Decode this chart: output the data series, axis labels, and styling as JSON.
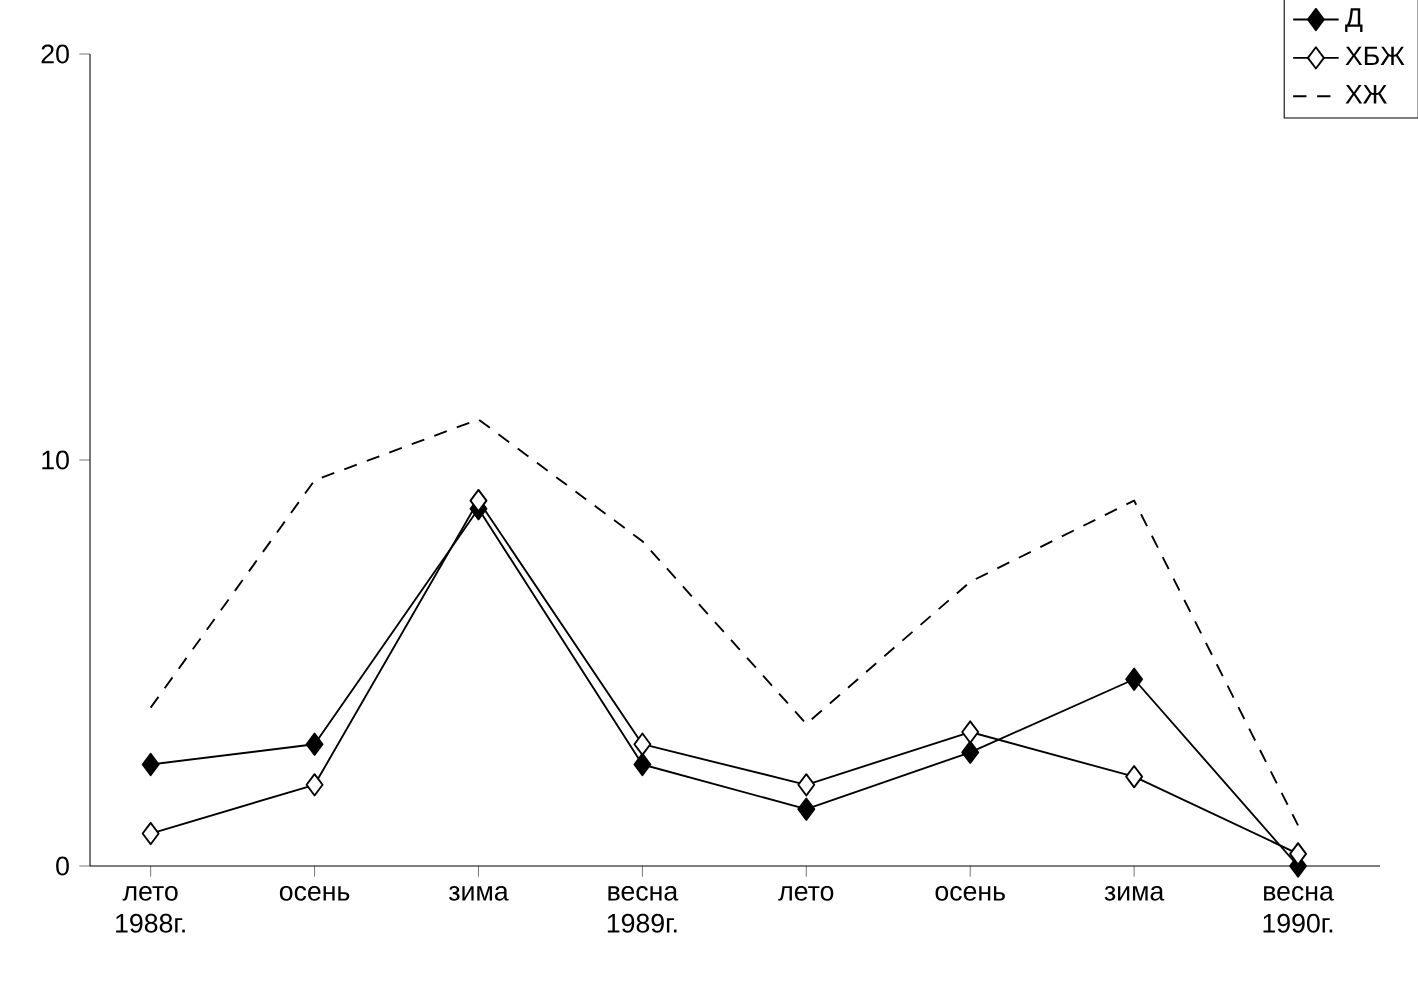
{
  "chart_data": {
    "type": "line",
    "categories": [
      "лето 1988г.",
      "осень",
      "зима",
      "весна 1989г.",
      "лето",
      "осень",
      "зима",
      "весна 1990г."
    ],
    "series": [
      {
        "name": "Д",
        "color": "#000000",
        "marker": "diamond",
        "line_style": "solid",
        "values": [
          2.5,
          3.0,
          8.8,
          2.5,
          1.4,
          2.8,
          4.6,
          0
        ]
      },
      {
        "name": "ХБЖ",
        "color": "#000000",
        "marker": "diamond",
        "line_style": "solid",
        "values": [
          0.8,
          2.0,
          9.0,
          3.0,
          2.0,
          3.3,
          2.2,
          0.3
        ]
      },
      {
        "name": "ХЖ",
        "color": "#000000",
        "marker": "none",
        "line_style": "dashed",
        "values": [
          3.9,
          9.5,
          11.0,
          8.0,
          3.5,
          7.0,
          9.0,
          1.0
        ]
      }
    ],
    "ylim": [
      0,
      20
    ],
    "yticks": [
      0,
      10,
      20
    ],
    "grid": false,
    "legend": "top right"
  }
}
